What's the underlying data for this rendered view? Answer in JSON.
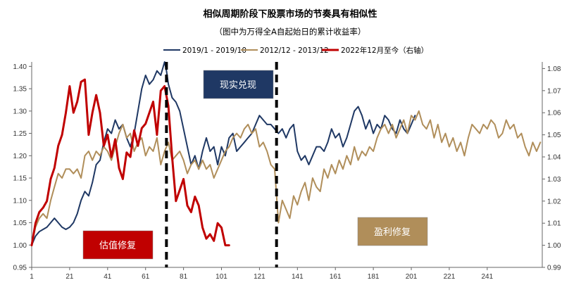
{
  "chart_data": {
    "type": "line",
    "title": "相似周期阶段下股票市场的节奏具有相似性",
    "subtitle": "（图中为万得全A自起始日的累计收益率）",
    "xlim": [
      1,
      270
    ],
    "x_ticks": [
      1,
      21,
      41,
      61,
      81,
      101,
      121,
      141,
      161,
      181,
      201,
      221,
      241
    ],
    "ylim_left": [
      0.95,
      1.41
    ],
    "y_ticks_left": [
      "0.95",
      "1.00",
      "1.05",
      "1.10",
      "1.15",
      "1.20",
      "1.25",
      "1.30",
      "1.35",
      "1.40"
    ],
    "ylim_right": [
      0.99,
      1.083
    ],
    "y_ticks_right": [
      "0.99",
      "1.00",
      "1.01",
      "1.02",
      "1.03",
      "1.04",
      "1.05",
      "1.06",
      "1.07",
      "1.08"
    ],
    "colors": {
      "navy": "#1f3864",
      "tan": "#b08e5a",
      "red": "#c00000",
      "axis": "#666666"
    },
    "series": [
      {
        "name": "2019/1 - 2019/10",
        "axis": "left",
        "color": "#1f3864",
        "x": [
          1,
          3,
          5,
          7,
          9,
          11,
          13,
          15,
          17,
          19,
          21,
          23,
          25,
          27,
          29,
          31,
          33,
          35,
          37,
          39,
          41,
          43,
          45,
          47,
          49,
          51,
          53,
          55,
          57,
          59,
          61,
          63,
          65,
          67,
          69,
          71,
          72,
          73,
          75,
          77,
          79,
          81,
          83,
          85,
          87,
          89,
          91,
          93,
          95,
          97,
          99,
          101,
          103,
          105,
          107,
          109,
          111,
          113,
          115,
          117,
          119,
          121,
          123,
          125,
          127,
          129,
          131,
          133,
          135,
          137,
          139,
          141,
          143,
          145,
          147,
          149,
          151,
          153,
          155,
          157,
          159,
          161,
          163,
          165,
          167,
          169,
          171,
          173,
          175,
          177,
          179,
          181,
          183,
          185,
          187,
          189,
          191,
          193,
          195,
          197,
          199,
          201,
          203
        ],
        "y": [
          1.0,
          1.02,
          1.03,
          1.035,
          1.04,
          1.05,
          1.06,
          1.05,
          1.04,
          1.035,
          1.04,
          1.05,
          1.07,
          1.1,
          1.12,
          1.11,
          1.14,
          1.18,
          1.19,
          1.23,
          1.26,
          1.25,
          1.28,
          1.26,
          1.27,
          1.24,
          1.22,
          1.25,
          1.3,
          1.35,
          1.38,
          1.36,
          1.37,
          1.39,
          1.38,
          1.41,
          1.39,
          1.36,
          1.33,
          1.32,
          1.3,
          1.26,
          1.22,
          1.18,
          1.2,
          1.17,
          1.21,
          1.24,
          1.21,
          1.22,
          1.18,
          1.22,
          1.2,
          1.24,
          1.25,
          1.21,
          1.22,
          1.23,
          1.24,
          1.25,
          1.27,
          1.29,
          1.28,
          1.27,
          1.27,
          1.26,
          1.25,
          1.26,
          1.24,
          1.26,
          1.27,
          1.21,
          1.19,
          1.2,
          1.18,
          1.2,
          1.22,
          1.22,
          1.21,
          1.23,
          1.26,
          1.24,
          1.25,
          1.22,
          1.24,
          1.27,
          1.3,
          1.31,
          1.29,
          1.26,
          1.28,
          1.25,
          1.27,
          1.26,
          1.29,
          1.28,
          1.26,
          1.25,
          1.28,
          1.26,
          1.25,
          1.27,
          1.29
        ]
      },
      {
        "name": "2012/12 - 2013/12",
        "axis": "left",
        "color": "#b08e5a",
        "x": [
          1,
          3,
          5,
          7,
          9,
          11,
          13,
          15,
          17,
          19,
          21,
          23,
          25,
          27,
          29,
          31,
          33,
          35,
          37,
          39,
          41,
          43,
          45,
          47,
          49,
          51,
          53,
          55,
          57,
          59,
          61,
          63,
          65,
          67,
          69,
          71,
          73,
          75,
          77,
          79,
          81,
          83,
          85,
          87,
          89,
          91,
          93,
          95,
          97,
          99,
          101,
          103,
          105,
          107,
          109,
          111,
          113,
          115,
          117,
          119,
          121,
          123,
          125,
          127,
          129,
          131,
          133,
          135,
          137,
          139,
          141,
          143,
          145,
          147,
          149,
          151,
          153,
          155,
          157,
          159,
          161,
          163,
          165,
          167,
          169,
          171,
          173,
          175,
          177,
          179,
          181,
          183,
          185,
          187,
          189,
          191,
          193,
          195,
          197,
          199,
          201,
          203,
          205,
          207,
          209,
          211,
          213,
          215,
          217,
          219,
          221,
          223,
          225,
          227,
          229,
          231,
          233,
          235,
          237,
          239,
          241,
          243,
          245,
          247,
          249,
          251,
          253,
          255,
          257,
          259,
          261,
          263,
          265,
          267,
          269
        ],
        "y": [
          1.0,
          1.04,
          1.06,
          1.07,
          1.06,
          1.1,
          1.13,
          1.16,
          1.15,
          1.17,
          1.17,
          1.16,
          1.17,
          1.15,
          1.2,
          1.21,
          1.19,
          1.21,
          1.2,
          1.22,
          1.21,
          1.19,
          1.22,
          1.25,
          1.27,
          1.24,
          1.25,
          1.21,
          1.23,
          1.24,
          1.2,
          1.22,
          1.21,
          1.24,
          1.18,
          1.21,
          1.23,
          1.19,
          1.2,
          1.21,
          1.19,
          1.16,
          1.18,
          1.19,
          1.17,
          1.19,
          1.17,
          1.18,
          1.15,
          1.17,
          1.19,
          1.21,
          1.22,
          1.24,
          1.25,
          1.24,
          1.26,
          1.27,
          1.25,
          1.26,
          1.22,
          1.23,
          1.21,
          1.18,
          1.17,
          1.05,
          1.1,
          1.08,
          1.06,
          1.11,
          1.09,
          1.12,
          1.14,
          1.1,
          1.15,
          1.13,
          1.12,
          1.17,
          1.15,
          1.18,
          1.16,
          1.19,
          1.17,
          1.2,
          1.18,
          1.22,
          1.19,
          1.21,
          1.2,
          1.22,
          1.21,
          1.24,
          1.26,
          1.27,
          1.25,
          1.27,
          1.24,
          1.26,
          1.28,
          1.25,
          1.29,
          1.28,
          1.3,
          1.27,
          1.26,
          1.28,
          1.24,
          1.27,
          1.23,
          1.25,
          1.22,
          1.24,
          1.21,
          1.23,
          1.2,
          1.24,
          1.27,
          1.26,
          1.25,
          1.27,
          1.26,
          1.28,
          1.27,
          1.24,
          1.25,
          1.28,
          1.26,
          1.27,
          1.24,
          1.25,
          1.22,
          1.2,
          1.23,
          1.21,
          1.23
        ]
      },
      {
        "name": "2022年12月至今（右轴）",
        "axis": "right",
        "color": "#c00000",
        "x": [
          1,
          3,
          5,
          7,
          9,
          11,
          13,
          15,
          17,
          19,
          21,
          23,
          25,
          27,
          29,
          31,
          33,
          35,
          37,
          39,
          41,
          43,
          45,
          47,
          49,
          51,
          53,
          55,
          57,
          59,
          61,
          63,
          65,
          67,
          69,
          71,
          73,
          75,
          77,
          79,
          81,
          83,
          85,
          87,
          89,
          91,
          93,
          95,
          97,
          99,
          101,
          103,
          105
        ],
        "y": [
          1.0,
          1.01,
          1.015,
          1.017,
          1.02,
          1.03,
          1.035,
          1.045,
          1.05,
          1.06,
          1.072,
          1.06,
          1.065,
          1.074,
          1.075,
          1.05,
          1.06,
          1.068,
          1.06,
          1.045,
          1.05,
          1.04,
          1.048,
          1.035,
          1.03,
          1.042,
          1.04,
          1.052,
          1.045,
          1.053,
          1.055,
          1.06,
          1.065,
          1.05,
          1.07,
          1.072,
          1.063,
          1.04,
          1.02,
          1.025,
          1.03,
          1.018,
          1.015,
          1.022,
          1.018,
          1.008,
          1.003,
          1.005,
          1.002,
          1.01,
          1.008,
          1.0,
          1.0
        ]
      }
    ],
    "separators_x": [
      72,
      130
    ],
    "annotations": [
      {
        "text": "估值修复",
        "color": "#c00000"
      },
      {
        "text": "现实兑现",
        "color": "#1f3864"
      },
      {
        "text": "盈利修复",
        "color": "#b08e5a"
      }
    ]
  }
}
